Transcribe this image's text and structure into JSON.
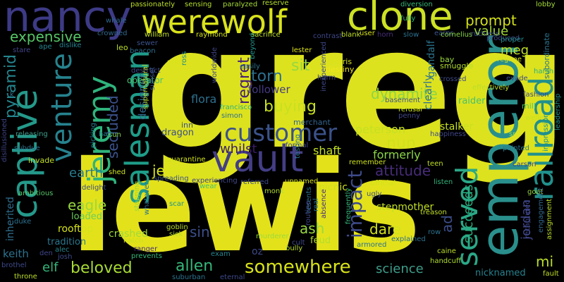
{
  "words": [
    {
      "text": "greg",
      "color": "#dde21e"
    },
    {
      "text": "lewis",
      "color": "#e3e21a"
    },
    {
      "text": "nancy",
      "color": "#3d3a86"
    },
    {
      "text": "werewolf",
      "color": "#d9e21c"
    },
    {
      "text": "clone",
      "color": "#cde124"
    },
    {
      "text": "emperor",
      "color": "#2a8f8c"
    },
    {
      "text": "railroad",
      "color": "#21908c"
    },
    {
      "text": "captive",
      "color": "#24998a"
    },
    {
      "text": "vault",
      "color": "#433e85"
    },
    {
      "text": "customer",
      "color": "#3b528b"
    },
    {
      "text": "jeremy",
      "color": "#2fb47c"
    },
    {
      "text": "salesman",
      "color": "#1e9d89"
    },
    {
      "text": "venture",
      "color": "#26828e"
    },
    {
      "text": "served",
      "color": "#2aa887"
    },
    {
      "text": "somewhere",
      "color": "#d7e219"
    },
    {
      "text": "beloved",
      "color": "#a8db34"
    },
    {
      "text": "allen",
      "color": "#35b779"
    },
    {
      "text": "science",
      "color": "#3e9d8a"
    },
    {
      "text": "impact",
      "color": "#3e4a89"
    },
    {
      "text": "value",
      "color": "#a2da37"
    },
    {
      "text": "prompt",
      "color": "#d3e01c"
    },
    {
      "text": "expensive",
      "color": "#56c667"
    },
    {
      "text": "pyramid",
      "color": "#25858e"
    },
    {
      "text": "secluded",
      "color": "#3b528b"
    },
    {
      "text": "regret",
      "color": "#482173"
    },
    {
      "text": "torn",
      "color": "#2d6f8e"
    },
    {
      "text": "sit",
      "color": "#95d840"
    },
    {
      "text": "buying",
      "color": "#c8e020"
    },
    {
      "text": "dynamite",
      "color": "#89d548"
    },
    {
      "text": "attitude",
      "color": "#472c7a"
    },
    {
      "text": "nun",
      "color": "#cfe11c"
    },
    {
      "text": "whilst",
      "color": "#3b1c6e"
    },
    {
      "text": "jensen",
      "color": "#d9e51b"
    },
    {
      "text": "earth",
      "color": "#297b8e"
    },
    {
      "text": "eagle",
      "color": "#98d83e"
    },
    {
      "text": "sin",
      "color": "#3c4f8a"
    },
    {
      "text": "ash",
      "color": "#99d93e"
    },
    {
      "text": "dare",
      "color": "#d3e21b"
    },
    {
      "text": "succeeds",
      "color": "#29af7f"
    },
    {
      "text": "jordan",
      "color": "#404588"
    },
    {
      "text": "ad",
      "color": "#3d4e8a"
    },
    {
      "text": "mi",
      "color": "#b8de29"
    },
    {
      "text": "elf",
      "color": "#34b679"
    },
    {
      "text": "keith",
      "color": "#2c728e"
    },
    {
      "text": "inherited",
      "color": "#2e6e8e"
    },
    {
      "text": "meg",
      "color": "#bfdf25"
    },
    {
      "text": "gandalf",
      "color": "#2b748e"
    },
    {
      "text": "flora",
      "color": "#2d708e"
    },
    {
      "text": "designer",
      "color": "#30698e"
    },
    {
      "text": "follower",
      "color": "#443a83"
    },
    {
      "text": "peterson",
      "color": "#c5e021"
    },
    {
      "text": "shaft",
      "color": "#c2df23"
    },
    {
      "text": "formerly",
      "color": "#8bd646"
    },
    {
      "text": "nicknamed",
      "color": "#26818e"
    },
    {
      "text": "crashed",
      "color": "#a0da39"
    },
    {
      "text": "stepmother",
      "color": "#c0df25"
    },
    {
      "text": "clearly",
      "color": "#2c738e"
    },
    {
      "text": "merchant",
      "color": "#33638d"
    },
    {
      "text": "dragon",
      "color": "#3d4d8a"
    },
    {
      "text": "oz",
      "color": "#3e4989"
    },
    {
      "text": "feud",
      "color": "#b2dd2d"
    },
    {
      "text": "loaded",
      "color": "#6ccd5a"
    },
    {
      "text": "rooftop",
      "color": "#d5e21a"
    },
    {
      "text": "tradition",
      "color": "#2a768e"
    },
    {
      "text": "operator",
      "color": "#4ac16d"
    },
    {
      "text": "picnic",
      "color": "#d0e11c"
    },
    {
      "text": "stalker",
      "color": "#c7e020"
    },
    {
      "text": "raider",
      "color": "#48c16e"
    },
    {
      "text": "morris",
      "color": "#d8e219"
    },
    {
      "text": "destiny",
      "color": "#efe51c"
    },
    {
      "text": "passionately",
      "color": "#bade28"
    },
    {
      "text": "sensing",
      "color": "#b5de2b"
    },
    {
      "text": "paralyzed",
      "color": "#a5db36"
    },
    {
      "text": "reserve",
      "color": "#b0dd2f"
    },
    {
      "text": "diversion",
      "color": "#37b878"
    },
    {
      "text": "whale",
      "color": "#30688e"
    },
    {
      "text": "lobby",
      "color": "#a5db36"
    },
    {
      "text": "fully",
      "color": "#31b57b"
    },
    {
      "text": "horn",
      "color": "#472d7b"
    },
    {
      "text": "crowned",
      "color": "#31688e"
    },
    {
      "text": "william",
      "color": "#c2df23"
    },
    {
      "text": "raymond",
      "color": "#d2e21b"
    },
    {
      "text": "sacrifice",
      "color": "#bddf26"
    },
    {
      "text": "user",
      "color": "#d8e219"
    },
    {
      "text": "blank",
      "color": "#c2df23"
    },
    {
      "text": "contrast",
      "color": "#3f4788"
    },
    {
      "text": "slow",
      "color": "#2d708e"
    },
    {
      "text": "earns",
      "color": "#3a548c"
    },
    {
      "text": "cornelius",
      "color": "#89d548"
    },
    {
      "text": "produced",
      "color": "#3e4c8a"
    },
    {
      "text": "ruthless",
      "color": "#3b518b"
    },
    {
      "text": "proper",
      "color": "#238a8d"
    },
    {
      "text": "subordinate",
      "color": "#2c738e"
    },
    {
      "text": "leo",
      "color": "#bade28"
    },
    {
      "text": "beacon",
      "color": "#2e6f8e"
    },
    {
      "text": "sewer",
      "color": "#3b528b"
    },
    {
      "text": "ape",
      "color": "#25848e"
    },
    {
      "text": "dislike",
      "color": "#26818e"
    },
    {
      "text": "stare",
      "color": "#414487"
    },
    {
      "text": "beyond",
      "color": "#1f978b"
    },
    {
      "text": "lester",
      "color": "#dde318"
    },
    {
      "text": "inexperienced",
      "color": "#3f4889"
    },
    {
      "text": "bay",
      "color": "#9bd93c"
    },
    {
      "text": "regime",
      "color": "#d2e21b"
    },
    {
      "text": "smuggle",
      "color": "#b2dd2d"
    },
    {
      "text": "harsh",
      "color": "#2ab07f"
    },
    {
      "text": "evade",
      "color": "#3e4989"
    },
    {
      "text": "effectively",
      "color": "#bade28"
    },
    {
      "text": "fashion",
      "color": "#3f4889"
    },
    {
      "text": "mill",
      "color": "#50c46a"
    },
    {
      "text": "welles",
      "color": "#c8e020"
    },
    {
      "text": "leadership",
      "color": "#21918c"
    },
    {
      "text": "impression",
      "color": "#20928c"
    },
    {
      "text": "basement",
      "color": "#3a548c"
    },
    {
      "text": "refusal",
      "color": "#cde11d"
    },
    {
      "text": "penny",
      "color": "#404688"
    },
    {
      "text": "prom",
      "color": "#d8e219"
    },
    {
      "text": "destruct",
      "color": "#3e4989"
    },
    {
      "text": "ross",
      "color": "#228b8d"
    },
    {
      "text": "sunset",
      "color": "#39558c"
    },
    {
      "text": "easily",
      "color": "#2c728e"
    },
    {
      "text": "worldwide",
      "color": "#404688"
    },
    {
      "text": "francisco",
      "color": "#2ab07f"
    },
    {
      "text": "simon",
      "color": "#2e6f8e"
    },
    {
      "text": "inn",
      "color": "#3b518b"
    },
    {
      "text": "supernatural",
      "color": "#bade28"
    },
    {
      "text": "quarantine",
      "color": "#d2e21b"
    },
    {
      "text": "sun",
      "color": "#84d44b"
    },
    {
      "text": "halt",
      "color": "#25838e"
    },
    {
      "text": "picking",
      "color": "#26818e"
    },
    {
      "text": "releasing",
      "color": "#3e9d8a"
    },
    {
      "text": "disillusioned",
      "color": "#404688"
    },
    {
      "text": "subdue",
      "color": "#2d718e"
    },
    {
      "text": "invade",
      "color": "#c0df25"
    },
    {
      "text": "happiness",
      "color": "#3f4788"
    },
    {
      "text": "sr",
      "color": "#98d83e"
    },
    {
      "text": "painted",
      "color": "#2b758e"
    },
    {
      "text": "carson",
      "color": "#3f4889"
    },
    {
      "text": "goat",
      "color": "#98d83e"
    },
    {
      "text": "engagement",
      "color": "#31688e"
    },
    {
      "text": "recaptured",
      "color": "#3f4889"
    },
    {
      "text": "assignment",
      "color": "#bade28"
    },
    {
      "text": "formal",
      "color": "#3f4889"
    },
    {
      "text": "testing",
      "color": "#2c728e"
    },
    {
      "text": "remember",
      "color": "#cde11d"
    },
    {
      "text": "teen",
      "color": "#c2df23"
    },
    {
      "text": "listen",
      "color": "#31b57b"
    },
    {
      "text": "official",
      "color": "#d2e21b"
    },
    {
      "text": "ugly",
      "color": "#3e4989"
    },
    {
      "text": "spreading",
      "color": "#3a548c"
    },
    {
      "text": "experiencing",
      "color": "#404688"
    },
    {
      "text": "referred",
      "color": "#3e4c8a"
    },
    {
      "text": "wear",
      "color": "#46c06f"
    },
    {
      "text": "unnamed",
      "color": "#d5e21a"
    },
    {
      "text": "monk",
      "color": "#b2dd2d"
    },
    {
      "text": "real",
      "color": "#2c728e"
    },
    {
      "text": "resents",
      "color": "#2c728e"
    },
    {
      "text": "absence",
      "color": "#472d7b"
    },
    {
      "text": "treason",
      "color": "#c0df25"
    },
    {
      "text": "shed",
      "color": "#cde11d"
    },
    {
      "text": "delight",
      "color": "#3e4a89"
    },
    {
      "text": "ambitious",
      "color": "#56c667"
    },
    {
      "text": "stopping",
      "color": "#98d83e"
    },
    {
      "text": "whatever",
      "color": "#2c728e"
    },
    {
      "text": "scar",
      "color": "#20928c"
    },
    {
      "text": "goblin",
      "color": "#b8de29"
    },
    {
      "text": "sick",
      "color": "#b5de2b"
    },
    {
      "text": "duke",
      "color": "#2c728e"
    },
    {
      "text": "den",
      "color": "#404688"
    },
    {
      "text": "alec",
      "color": "#25848e"
    },
    {
      "text": "hatch",
      "color": "#c8e020"
    },
    {
      "text": "ranger",
      "color": "#472d7b"
    },
    {
      "text": "prevents",
      "color": "#35b779"
    },
    {
      "text": "exam",
      "color": "#25848e"
    },
    {
      "text": "murderer",
      "color": "#9bd93c"
    },
    {
      "text": "routine",
      "color": "#3f4889"
    },
    {
      "text": "cult",
      "color": "#3e4989"
    },
    {
      "text": "bully",
      "color": "#b8de29"
    },
    {
      "text": "armored",
      "color": "#2c728e"
    },
    {
      "text": "explained",
      "color": "#2e6f8e"
    },
    {
      "text": "row",
      "color": "#2c728e"
    },
    {
      "text": "caine",
      "color": "#bddf26"
    },
    {
      "text": "handcuff",
      "color": "#b0dd2f"
    },
    {
      "text": "josh",
      "color": "#3e4c8a"
    },
    {
      "text": "brothel",
      "color": "#3e4989"
    },
    {
      "text": "throne",
      "color": "#bade28"
    },
    {
      "text": "suburban",
      "color": "#2c728e"
    },
    {
      "text": "eternal",
      "color": "#3e4989"
    },
    {
      "text": "frequently",
      "color": "#35b779"
    },
    {
      "text": "fault",
      "color": "#c2df23"
    },
    {
      "text": "harm",
      "color": "#3f4889"
    },
    {
      "text": "k",
      "color": "#2c728e"
    },
    {
      "text": "crossed",
      "color": "#3e4989"
    }
  ]
}
